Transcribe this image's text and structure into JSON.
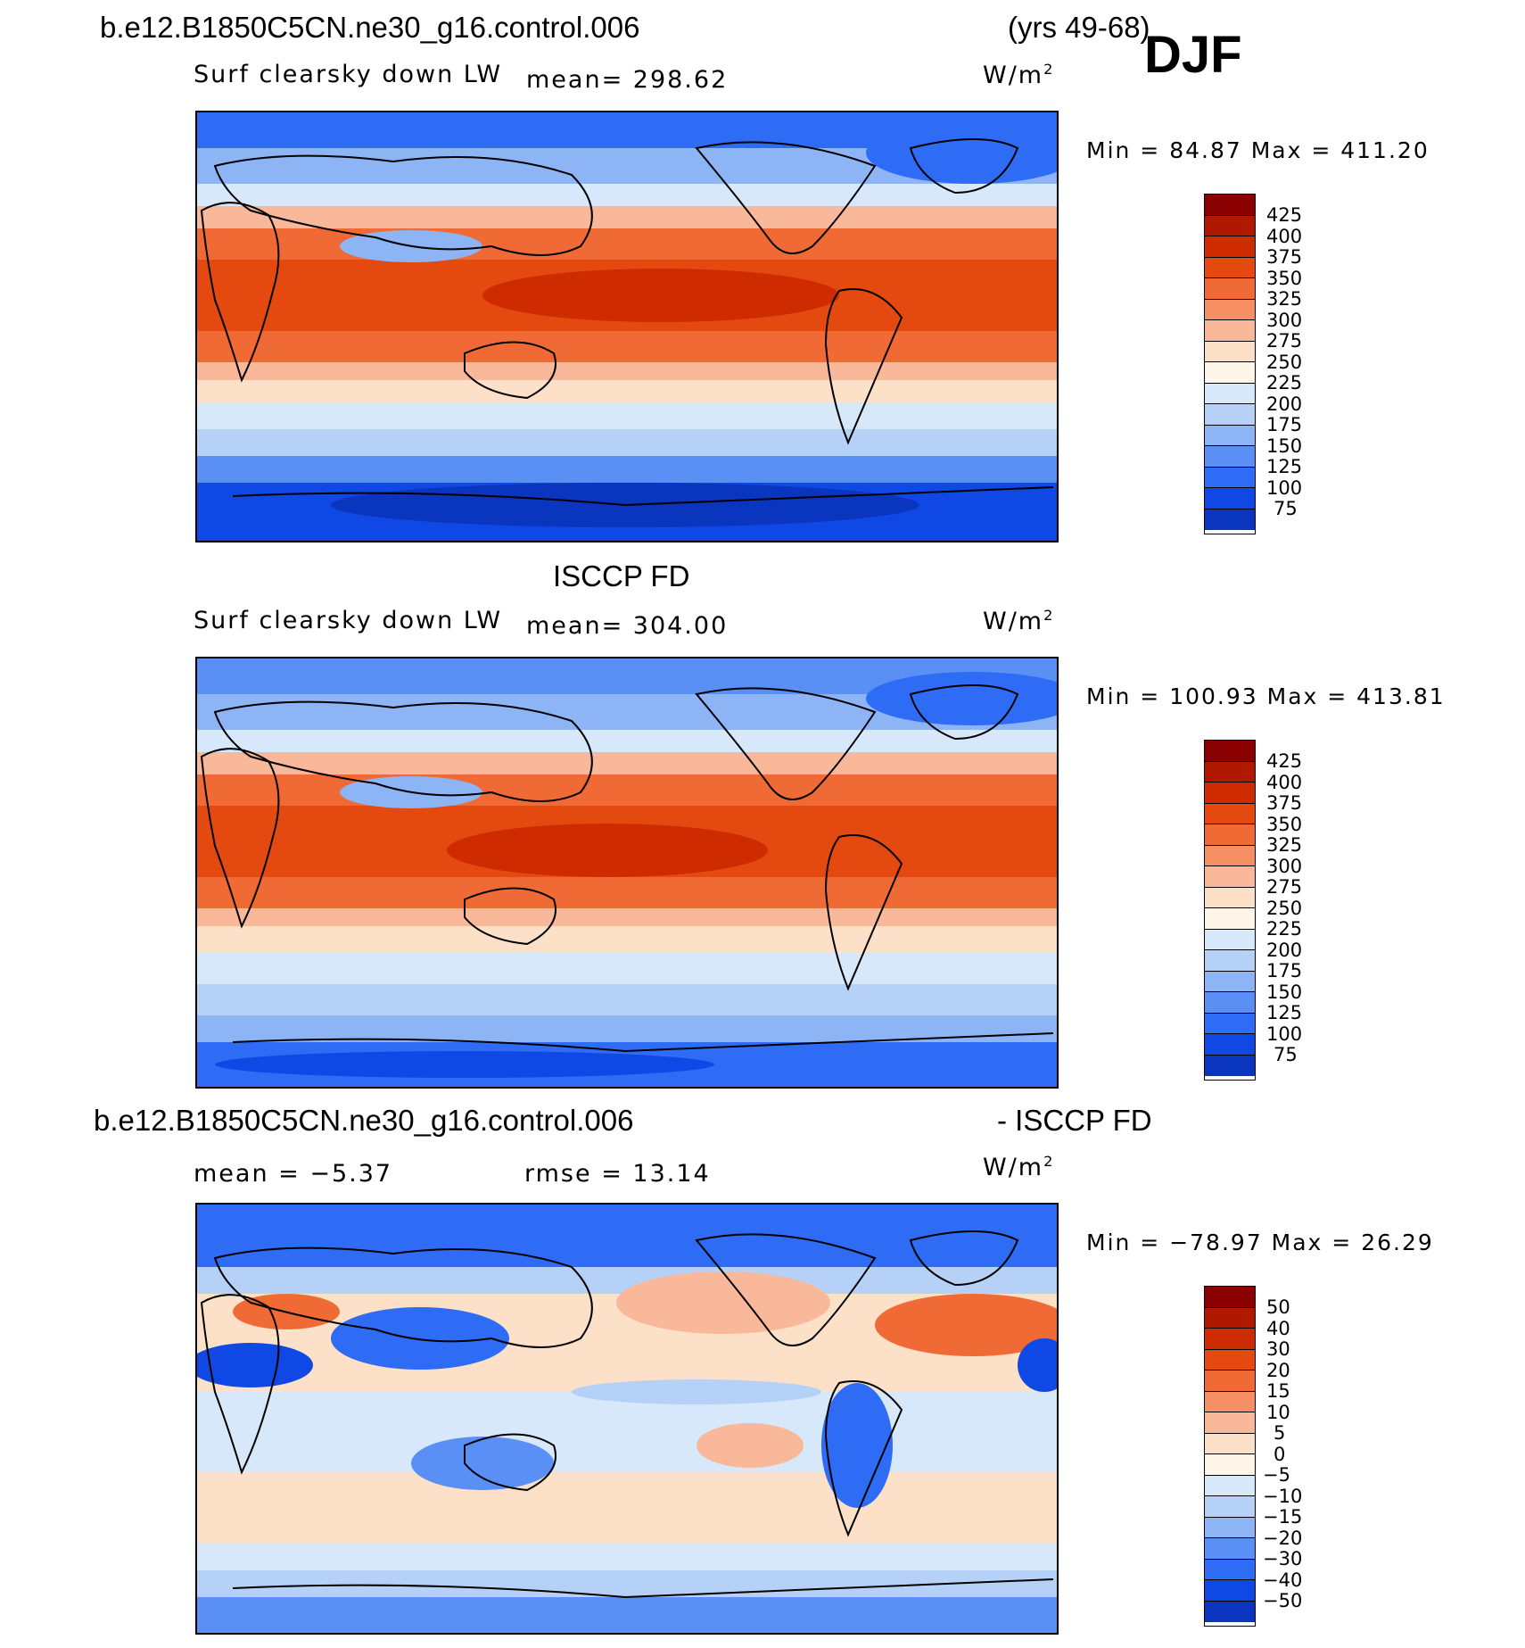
{
  "header": {
    "case_name": "b.e12.B1850C5CN.ne30_g16.control.006",
    "years": "(yrs 49-68)",
    "season": "DJF"
  },
  "panel1": {
    "variable": "Surf clearsky down LW",
    "mean": "mean=  298.62",
    "units": "W/m",
    "units_exp": "2",
    "minmax": "Min =   84.87  Max  =  411.20",
    "map_type": "model climatology"
  },
  "panel2": {
    "title": "ISCCP FD",
    "variable": "Surf clearsky down LW",
    "mean": "mean=  304.00",
    "units": "W/m",
    "units_exp": "2",
    "minmax": "Min  =  100.93  Max  =  413.81",
    "map_type": "observations"
  },
  "panel3": {
    "title_left": "b.e12.B1850C5CN.ne30_g16.control.006",
    "title_right": "- ISCCP FD",
    "mean": "mean  =   −5.37",
    "rmse": "rmse  =   13.14",
    "units": "W/m",
    "units_exp": "2",
    "minmax": "Min  =  −78.97  Max  =    26.29",
    "map_type": "difference"
  },
  "colorbar_abs": {
    "labels": [
      "425",
      "400",
      "375",
      "350",
      "325",
      "300",
      "275",
      "250",
      "225",
      "200",
      "175",
      "150",
      "125",
      "100",
      "75"
    ],
    "colors": [
      "#8a0000",
      "#b01800",
      "#cf2b00",
      "#e44a10",
      "#f06a35",
      "#f78f64",
      "#fab89a",
      "#fde0c8",
      "#fff6ea",
      "#d6e8fa",
      "#b5d1f7",
      "#8db4f5",
      "#5a8ff5",
      "#2f6cf5",
      "#0f48e5",
      "#0a35bf",
      "#072890"
    ]
  },
  "colorbar_diff": {
    "labels": [
      "50",
      "40",
      "30",
      "20",
      "15",
      "10",
      "5",
      "0",
      "−5",
      "−10",
      "−15",
      "−20",
      "−30",
      "−40",
      "−50"
    ],
    "colors": [
      "#8a0000",
      "#b01800",
      "#cf2b00",
      "#e44a10",
      "#f06a35",
      "#f78f64",
      "#fab89a",
      "#fde0c8",
      "#fff6ea",
      "#d6e8fa",
      "#b5d1f7",
      "#8db4f5",
      "#5a8ff5",
      "#2f6cf5",
      "#0f48e5",
      "#0a35bf",
      "#072890"
    ]
  }
}
